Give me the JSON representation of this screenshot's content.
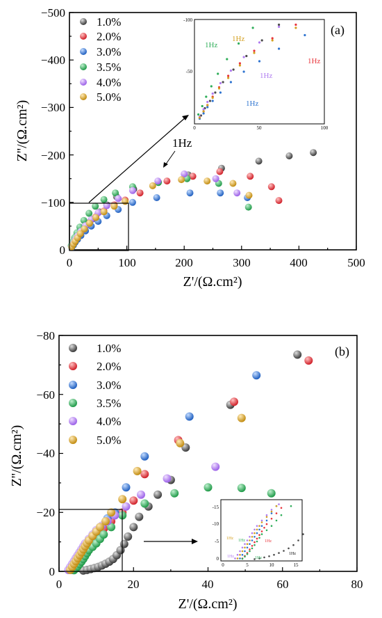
{
  "colors": {
    "1.0%": "#4a4a4a",
    "2.0%": "#e8333a",
    "3.0%": "#2f74d0",
    "3.5%": "#2fae5a",
    "4.0%": "#b07cf0",
    "5.0%": "#d4a020"
  },
  "chart_data": [
    {
      "type": "scatter",
      "panel_label": "(a)",
      "xlabel": "Z'/(Ω.cm²)",
      "ylabel": "Z''/(Ω.cm²)",
      "xlim": [
        0,
        500
      ],
      "ylim": [
        0,
        -500
      ],
      "x_ticks": [
        "0",
        "100",
        "200",
        "300",
        "400",
        "500"
      ],
      "y_ticks": [
        "0",
        "−100",
        "−200",
        "−300",
        "−400",
        "−500"
      ],
      "legend": [
        "1.0%",
        "2.0%",
        "3.0%",
        "3.5%",
        "4.0%",
        "5.0%"
      ],
      "legend_position": "top-left",
      "annotation": "1Hz",
      "series": [
        {
          "name": "1.0%",
          "x": [
            5,
            8,
            12,
            16,
            22,
            30,
            40,
            52,
            65,
            82,
            112,
            155,
            207,
            265,
            330,
            383,
            425
          ],
          "y": [
            -8,
            -15,
            -22,
            -30,
            -40,
            -52,
            -65,
            -80,
            -95,
            -112,
            -128,
            -143,
            -158,
            -172,
            -187,
            -198,
            -205
          ]
        },
        {
          "name": "2.0%",
          "x": [
            4,
            7,
            10,
            14,
            19,
            26,
            35,
            46,
            60,
            78,
            97,
            123,
            170,
            215,
            262,
            315,
            352,
            365
          ],
          "y": [
            -6,
            -12,
            -18,
            -26,
            -35,
            -46,
            -58,
            -70,
            -82,
            -95,
            -105,
            -120,
            -145,
            -155,
            -165,
            -155,
            -133,
            -104
          ]
        },
        {
          "name": "3.0%",
          "x": [
            4,
            7,
            10,
            14,
            20,
            28,
            38,
            50,
            65,
            85,
            110,
            152,
            210,
            263,
            310
          ],
          "y": [
            -5,
            -10,
            -16,
            -22,
            -30,
            -40,
            -50,
            -60,
            -72,
            -85,
            -100,
            -110,
            -120,
            -120,
            -110
          ]
        },
        {
          "name": "3.5%",
          "x": [
            3,
            6,
            9,
            13,
            18,
            25,
            34,
            45,
            60,
            80,
            110,
            155,
            205,
            260,
            312
          ],
          "y": [
            -9,
            -17,
            -26,
            -36,
            -48,
            -62,
            -77,
            -92,
            -106,
            -120,
            -133,
            -142,
            -150,
            -140,
            -90
          ]
        },
        {
          "name": "4.0%",
          "x": [
            4,
            7,
            10,
            14,
            20,
            28,
            38,
            50,
            65,
            85,
            110,
            154,
            200,
            255,
            292
          ],
          "y": [
            -7,
            -14,
            -21,
            -29,
            -39,
            -51,
            -64,
            -78,
            -93,
            -108,
            -125,
            -145,
            -160,
            -150,
            -120
          ]
        },
        {
          "name": "5.0%",
          "x": [
            4,
            7,
            10,
            14,
            19,
            26,
            35,
            46,
            60,
            78,
            97,
            145,
            195,
            240,
            285,
            313
          ],
          "y": [
            -6,
            -12,
            -18,
            -25,
            -34,
            -44,
            -56,
            -68,
            -80,
            -92,
            -102,
            -135,
            -148,
            -145,
            -140,
            -115
          ]
        }
      ],
      "inset": {
        "xlim": [
          0,
          100
        ],
        "ylim": [
          0,
          -100
        ],
        "x_ticks": [
          "0",
          "50",
          "100"
        ],
        "y_ticks": [
          "-100",
          "-50"
        ],
        "labels": [
          "1Hz",
          "1Hz",
          "1Hz",
          "1Hz",
          "1Hz"
        ]
      }
    },
    {
      "type": "scatter",
      "panel_label": "(b)",
      "xlabel": "Z'/(Ω.cm²)",
      "ylabel": "Z''/(Ω.cm²)",
      "xlim": [
        0,
        80
      ],
      "ylim": [
        0,
        -80
      ],
      "x_ticks": [
        "0",
        "20",
        "40",
        "60",
        "80"
      ],
      "y_ticks": [
        "0",
        "−20",
        "−40",
        "−60",
        "−80"
      ],
      "legend": [
        "1.0%",
        "2.0%",
        "3.0%",
        "3.5%",
        "4.0%",
        "5.0%"
      ],
      "legend_position": "top-left",
      "series": [
        {
          "name": "1.0%",
          "x": [
            6.5,
            7.5,
            8.5,
            9.5,
            10.5,
            11.5,
            12.5,
            13.5,
            14.5,
            15.5,
            16.5,
            17.5,
            18.5,
            20,
            21.5,
            24,
            26.5,
            30,
            34,
            46,
            64
          ],
          "y": [
            -0.3,
            -0.5,
            -0.8,
            -1.1,
            -1.5,
            -2,
            -2.6,
            -3.3,
            -4.2,
            -5.5,
            -7.2,
            -9.3,
            -11.8,
            -15,
            -18.5,
            -22,
            -26,
            -31,
            -42,
            -56.5,
            -73.5
          ]
        },
        {
          "name": "2.0%",
          "x": [
            4,
            4.5,
            5,
            5.5,
            6,
            6.5,
            7,
            7.5,
            8,
            8.5,
            9,
            10,
            11,
            12,
            14,
            17,
            20,
            23,
            32,
            47,
            67
          ],
          "y": [
            -0.5,
            -1.2,
            -2,
            -3,
            -4,
            -5,
            -6,
            -7,
            -8,
            -9,
            -10,
            -11.5,
            -13,
            -14.5,
            -17,
            -20,
            -24,
            -33,
            -44.5,
            -57.5,
            -71.5
          ]
        },
        {
          "name": "3.0%",
          "x": [
            3.5,
            4,
            4.5,
            5,
            5.5,
            6,
            6.5,
            7,
            7.5,
            8,
            9,
            10,
            11,
            13,
            15,
            18,
            23,
            35,
            53
          ],
          "y": [
            -0.5,
            -1.5,
            -2.5,
            -3.5,
            -4.5,
            -5.5,
            -6.5,
            -7.5,
            -8.5,
            -9.5,
            -11,
            -13,
            -15,
            -18,
            -20,
            -28.5,
            -39,
            -52.5,
            -66.5
          ]
        },
        {
          "name": "3.5%",
          "x": [
            4,
            4.5,
            5,
            5.5,
            6,
            6.5,
            7,
            7.5,
            8,
            9,
            10,
            11,
            12,
            14,
            17,
            23,
            31,
            40,
            49,
            57
          ],
          "y": [
            -0.4,
            -1,
            -1.7,
            -2.5,
            -3.3,
            -4.2,
            -5.2,
            -6.2,
            -7.2,
            -8.3,
            -9.5,
            -11,
            -12.5,
            -15,
            -19,
            -23,
            -26.5,
            -28.5,
            -28.3,
            -26.5
          ]
        },
        {
          "name": "4.0%",
          "x": [
            2.5,
            3,
            3.5,
            4,
            4.5,
            5,
            5.5,
            6,
            6.5,
            7,
            8,
            9,
            10,
            11.5,
            13,
            15,
            18,
            22,
            29,
            42
          ],
          "y": [
            -0.5,
            -1.5,
            -2.5,
            -3.5,
            -4.5,
            -5.5,
            -6.5,
            -7.5,
            -8.5,
            -9.5,
            -11,
            -12.5,
            -14,
            -15.5,
            -17,
            -19,
            -22,
            -26,
            -31.5,
            -35.5
          ]
        },
        {
          "name": "5.0%",
          "x": [
            3,
            3.5,
            4,
            4.5,
            5,
            5.5,
            6,
            6.5,
            7,
            7.5,
            8,
            9,
            10,
            11,
            12.5,
            14,
            17,
            21,
            32.5,
            49
          ],
          "y": [
            -0.5,
            -1.5,
            -2.5,
            -3.5,
            -4.5,
            -5.5,
            -6.5,
            -7.5,
            -8.5,
            -9.5,
            -10.5,
            -12,
            -13.5,
            -15,
            -17,
            -20,
            -24.5,
            -34,
            -43.5,
            -52
          ]
        }
      ],
      "inset": {
        "x_ticks": [
          "0",
          "5",
          "10",
          "15"
        ],
        "y_ticks": [
          "-15",
          "-10",
          "-5",
          "0"
        ],
        "labels": [
          "1Hz",
          "1Hz",
          "1Hz",
          "1Hz",
          "1Hz",
          "1Hz"
        ]
      }
    }
  ]
}
